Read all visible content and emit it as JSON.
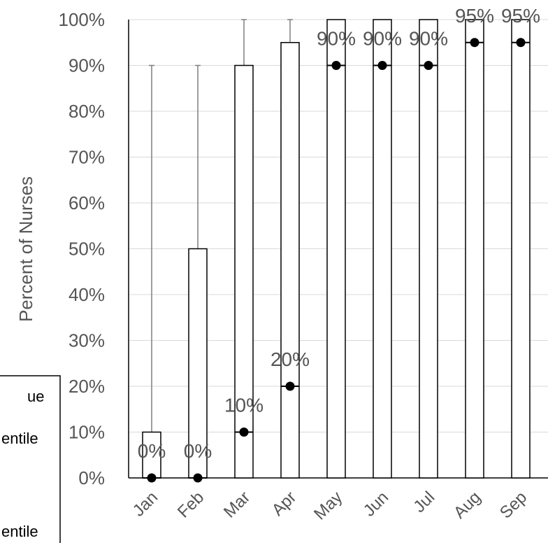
{
  "chart_data": {
    "type": "box",
    "ylabel": "Percent of Nurses",
    "xlabel": "",
    "ylim": [
      0,
      100
    ],
    "y_ticks": [
      "0%",
      "10%",
      "20%",
      "30%",
      "40%",
      "50%",
      "60%",
      "70%",
      "80%",
      "90%",
      "100%"
    ],
    "categories": [
      "Jan",
      "Feb",
      "Mar",
      "Apr",
      "May",
      "Jun",
      "Jul",
      "Aug",
      "Sep"
    ],
    "median": [
      0,
      0,
      10,
      20,
      90,
      90,
      90,
      95,
      95
    ],
    "median_labels": [
      "0%",
      "0%",
      "10%",
      "20%",
      "90%",
      "90%",
      "90%",
      "95%",
      "95%"
    ],
    "q1": [
      0,
      0,
      0,
      0,
      0,
      0,
      0,
      0,
      0
    ],
    "q3": [
      10,
      50,
      90,
      95,
      100,
      100,
      100,
      100,
      100
    ],
    "whisker_max": [
      90,
      90,
      100,
      100,
      100,
      100,
      100,
      100,
      100
    ],
    "grid": true,
    "legend_position": "bottom-left",
    "legend_entries": [
      "ue",
      "entile",
      "entile"
    ]
  }
}
